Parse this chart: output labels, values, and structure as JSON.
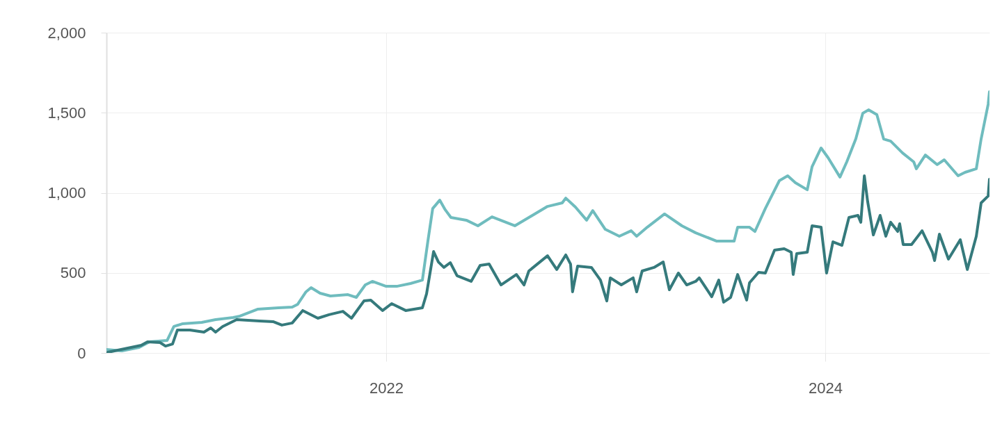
{
  "chart_data": {
    "type": "line",
    "xlim": [
      2020.726,
      2024.748
    ],
    "xticks": [
      2022,
      2024
    ],
    "ylim": [
      0,
      2000
    ],
    "yticks": [
      0,
      500,
      {
        "value": 1000,
        "label": "1,000"
      },
      {
        "value": 1500,
        "label": "1,500"
      },
      {
        "value": 2000,
        "label": "2,000"
      }
    ],
    "grid": true,
    "line_style": "solid",
    "marker": "none",
    "series": [
      {
        "color": "#6fbcbe",
        "x": [
          2020.726,
          2020.796,
          2020.875,
          2020.922,
          2021.002,
          2021.033,
          2021.071,
          2021.16,
          2021.223,
          2021.303,
          2021.334,
          2021.414,
          2021.509,
          2021.572,
          2021.597,
          2021.635,
          2021.658,
          2021.699,
          2021.746,
          2021.826,
          2021.864,
          2021.905,
          2021.937,
          2022.0,
          2022.048,
          2022.111,
          2022.165,
          2022.19,
          2022.212,
          2022.244,
          2022.269,
          2022.295,
          2022.365,
          2022.418,
          2022.482,
          2022.586,
          2022.65,
          2022.735,
          2022.802,
          2022.818,
          2022.862,
          2022.913,
          2022.941,
          2022.998,
          2023.062,
          2023.116,
          2023.141,
          2023.189,
          2023.268,
          2023.347,
          2023.41,
          2023.506,
          2023.585,
          2023.601,
          2023.655,
          2023.68,
          2023.727,
          2023.791,
          2023.829,
          2023.864,
          2023.918,
          2023.94,
          2023.981,
          2024.013,
          2024.067,
          2024.098,
          2024.139,
          2024.171,
          2024.197,
          2024.235,
          2024.266,
          2024.298,
          2024.352,
          2024.403,
          2024.415,
          2024.456,
          2024.51,
          2024.542,
          2024.605,
          2024.637,
          2024.688,
          2024.71,
          2024.742,
          2024.748
        ],
        "values": [
          22,
          13,
          35,
          69,
          78,
          165,
          182,
          191,
          208,
          221,
          230,
          273,
          282,
          286,
          304,
          382,
          408,
          373,
          356,
          364,
          347,
          425,
          447,
          416,
          416,
          434,
          455,
          698,
          902,
          954,
          894,
          846,
          829,
          794,
          850,
          794,
          846,
          915,
          937,
          967,
          911,
          829,
          889,
          772,
          729,
          763,
          729,
          785,
          868,
          794,
          750,
          698,
          698,
          785,
          785,
          759,
          902,
          1076,
          1106,
          1063,
          1019,
          1163,
          1280,
          1219,
          1098,
          1193,
          1336,
          1497,
          1518,
          1488,
          1336,
          1323,
          1249,
          1193,
          1150,
          1236,
          1176,
          1206,
          1106,
          1128,
          1150,
          1336,
          1553,
          1631
        ]
      },
      {
        "color": "#357a7c",
        "x": [
          2020.732,
          2020.884,
          2020.913,
          2020.97,
          2020.995,
          2021.027,
          2021.049,
          2021.106,
          2021.17,
          2021.201,
          2021.223,
          2021.255,
          2021.319,
          2021.423,
          2021.487,
          2021.525,
          2021.572,
          2021.62,
          2021.689,
          2021.74,
          2021.803,
          2021.842,
          2021.899,
          2021.93,
          2021.984,
          2022.025,
          2022.089,
          2022.165,
          2022.184,
          2022.216,
          2022.238,
          2022.263,
          2022.292,
          2022.323,
          2022.387,
          2022.428,
          2022.469,
          2022.523,
          2022.593,
          2022.628,
          2022.65,
          2022.735,
          2022.777,
          2022.818,
          2022.84,
          2022.849,
          2022.872,
          2022.935,
          2022.976,
          2023.005,
          2023.021,
          2023.071,
          2023.125,
          2023.141,
          2023.166,
          2023.22,
          2023.262,
          2023.29,
          2023.331,
          2023.369,
          2023.41,
          2023.426,
          2023.483,
          2023.515,
          2023.537,
          2023.569,
          2023.601,
          2023.642,
          2023.655,
          2023.696,
          2023.727,
          2023.769,
          2023.813,
          2023.845,
          2023.854,
          2023.87,
          2023.918,
          2023.94,
          2023.981,
          2024.006,
          2024.035,
          2024.076,
          2024.108,
          2024.149,
          2024.162,
          2024.178,
          2024.193,
          2024.219,
          2024.25,
          2024.276,
          2024.298,
          2024.33,
          2024.339,
          2024.355,
          2024.393,
          2024.441,
          2024.488,
          2024.498,
          2024.52,
          2024.561,
          2024.615,
          2024.647,
          2024.688,
          2024.71,
          2024.742,
          2024.748
        ],
        "values": [
          4,
          48,
          69,
          65,
          43,
          56,
          143,
          143,
          130,
          156,
          130,
          165,
          208,
          200,
          195,
          174,
          187,
          265,
          217,
          239,
          260,
          217,
          325,
          330,
          265,
          308,
          265,
          282,
          369,
          633,
          568,
          534,
          564,
          482,
          447,
          547,
          555,
          425,
          490,
          425,
          512,
          607,
          521,
          612,
          555,
          382,
          542,
          534,
          455,
          325,
          469,
          425,
          469,
          382,
          512,
          534,
          568,
          395,
          499,
          425,
          447,
          469,
          351,
          455,
          317,
          347,
          490,
          330,
          438,
          503,
          499,
          642,
          651,
          629,
          490,
          620,
          629,
          794,
          785,
          499,
          694,
          672,
          846,
          859,
          816,
          1106,
          946,
          737,
          859,
          729,
          816,
          759,
          807,
          677,
          677,
          763,
          629,
          577,
          742,
          586,
          707,
          521,
          729,
          937,
          980,
          1085
        ]
      }
    ]
  }
}
